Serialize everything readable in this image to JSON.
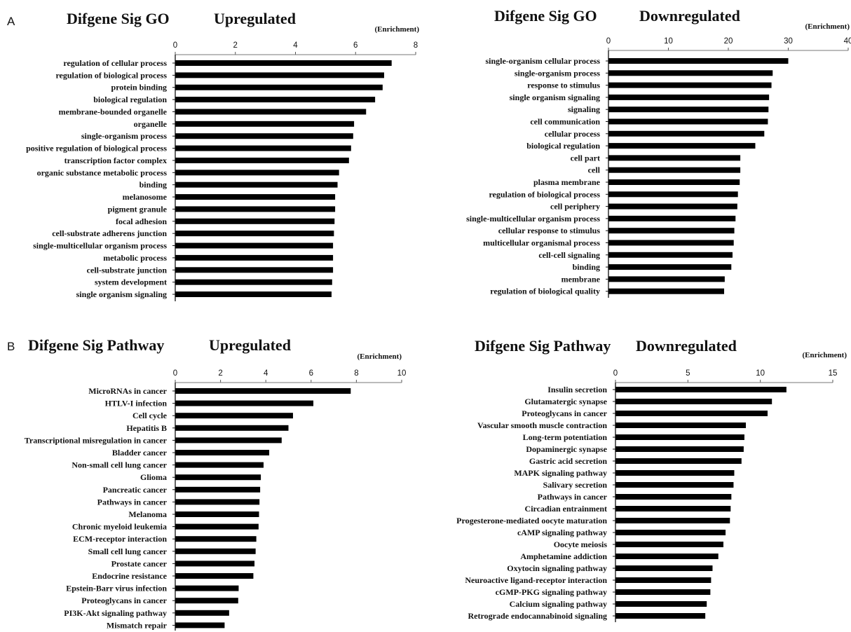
{
  "panel_labels": [
    "A",
    "B"
  ],
  "chart_data": [
    {
      "type": "bar",
      "orientation": "horizontal",
      "panel": "A",
      "title": "Difgene Sig GO",
      "subtitle": "Upregulated",
      "xlabel": "(Enrichment)",
      "xlim": [
        0,
        8
      ],
      "ticks": [
        0,
        2,
        4,
        6,
        8
      ],
      "grid": false,
      "categories": [
        "regulation of cellular process",
        "regulation of biological process",
        "protein binding",
        "biological regulation",
        "membrane-bounded organelle",
        "organelle",
        "single-organism process",
        "positive regulation of biological process",
        "transcription factor complex",
        "organic substance metabolic process",
        "binding",
        "melanosome",
        "pigment granule",
        "focal adhesion",
        "cell-substrate adherens junction",
        "single-multicellular organism process",
        "metabolic process",
        "cell-substrate junction",
        "system development",
        "single organism signaling"
      ],
      "values": [
        7.2,
        6.95,
        6.9,
        6.65,
        6.35,
        5.95,
        5.92,
        5.85,
        5.78,
        5.45,
        5.4,
        5.32,
        5.32,
        5.3,
        5.28,
        5.25,
        5.25,
        5.25,
        5.22,
        5.2
      ]
    },
    {
      "type": "bar",
      "orientation": "horizontal",
      "panel": "",
      "title": "Difgene Sig GO",
      "subtitle": "Downregulated",
      "xlabel": "(Enrichment)",
      "xlim": [
        0,
        40
      ],
      "ticks": [
        0,
        10,
        20,
        30,
        40
      ],
      "grid": false,
      "categories": [
        "single-organism cellular process",
        "single-organism process",
        "response to stimulus",
        "single organism signaling",
        "signaling",
        "cell communication",
        "cellular process",
        "biological regulation",
        "cell part",
        "cell",
        "plasma membrane",
        "regulation of biological process",
        "cell periphery",
        "single-multicellular organism process",
        "cellular response to stimulus",
        "multicellular organismal process",
        "cell-cell signaling",
        "binding",
        "membrane",
        "regulation of biological quality"
      ],
      "values": [
        30.0,
        27.4,
        27.2,
        26.8,
        26.7,
        26.6,
        26.0,
        24.5,
        22.0,
        22.0,
        21.9,
        21.6,
        21.5,
        21.2,
        21.0,
        20.9,
        20.7,
        20.5,
        19.4,
        19.3
      ]
    },
    {
      "type": "bar",
      "orientation": "horizontal",
      "panel": "B",
      "title": "Difgene Sig Pathway",
      "subtitle": "Upregulated",
      "xlabel": "(Enrichment)",
      "xlim": [
        0,
        10
      ],
      "ticks": [
        0,
        2,
        4,
        6,
        8,
        10
      ],
      "grid": false,
      "categories": [
        "MicroRNAs in cancer",
        "HTLV-I infection",
        "Cell cycle",
        "Hepatitis B",
        "Transcriptional misregulation in cancer",
        "Bladder cancer",
        "Non-small cell lung cancer",
        "Glioma",
        "Pancreatic cancer",
        "Pathways in cancer",
        "Melanoma",
        "Chronic myeloid leukemia",
        "ECM-receptor interaction",
        "Small cell lung cancer",
        "Prostate cancer",
        "Endocrine resistance",
        "Epstein-Barr virus infection",
        "Proteoglycans in cancer",
        "PI3K-Akt signaling pathway",
        "Mismatch repair"
      ],
      "values": [
        7.75,
        6.1,
        5.2,
        5.0,
        4.7,
        4.15,
        3.9,
        3.78,
        3.75,
        3.72,
        3.7,
        3.68,
        3.58,
        3.55,
        3.5,
        3.45,
        2.8,
        2.78,
        2.38,
        2.18
      ]
    },
    {
      "type": "bar",
      "orientation": "horizontal",
      "panel": "",
      "title": "Difgene Sig Pathway",
      "subtitle": "Downregulated",
      "xlabel": "(Enrichment)",
      "xlim": [
        0,
        15
      ],
      "ticks": [
        0,
        5,
        10,
        15
      ],
      "grid": false,
      "categories": [
        "Insulin secretion",
        "Glutamatergic synapse",
        "Proteoglycans in cancer",
        "Vascular smooth muscle contraction",
        "Long-term potentiation",
        "Dopaminergic synapse",
        "Gastric acid secretion",
        "MAPK signaling pathway",
        "Salivary secretion",
        "Pathways in cancer",
        "Circadian entrainment",
        "Progesterone-mediated oocyte maturation",
        "cAMP signaling pathway",
        "Oocyte meiosis",
        "Amphetamine addiction",
        "Oxytocin signaling pathway",
        "Neuroactive ligand-receptor interaction",
        "cGMP-PKG signaling pathway",
        "Calcium signaling pathway",
        "Retrograde endocannabinoid signaling"
      ],
      "values": [
        11.8,
        10.8,
        10.5,
        9.0,
        8.9,
        8.85,
        8.7,
        8.2,
        8.15,
        8.0,
        7.95,
        7.9,
        7.6,
        7.45,
        7.1,
        6.7,
        6.6,
        6.55,
        6.3,
        6.2
      ]
    }
  ]
}
